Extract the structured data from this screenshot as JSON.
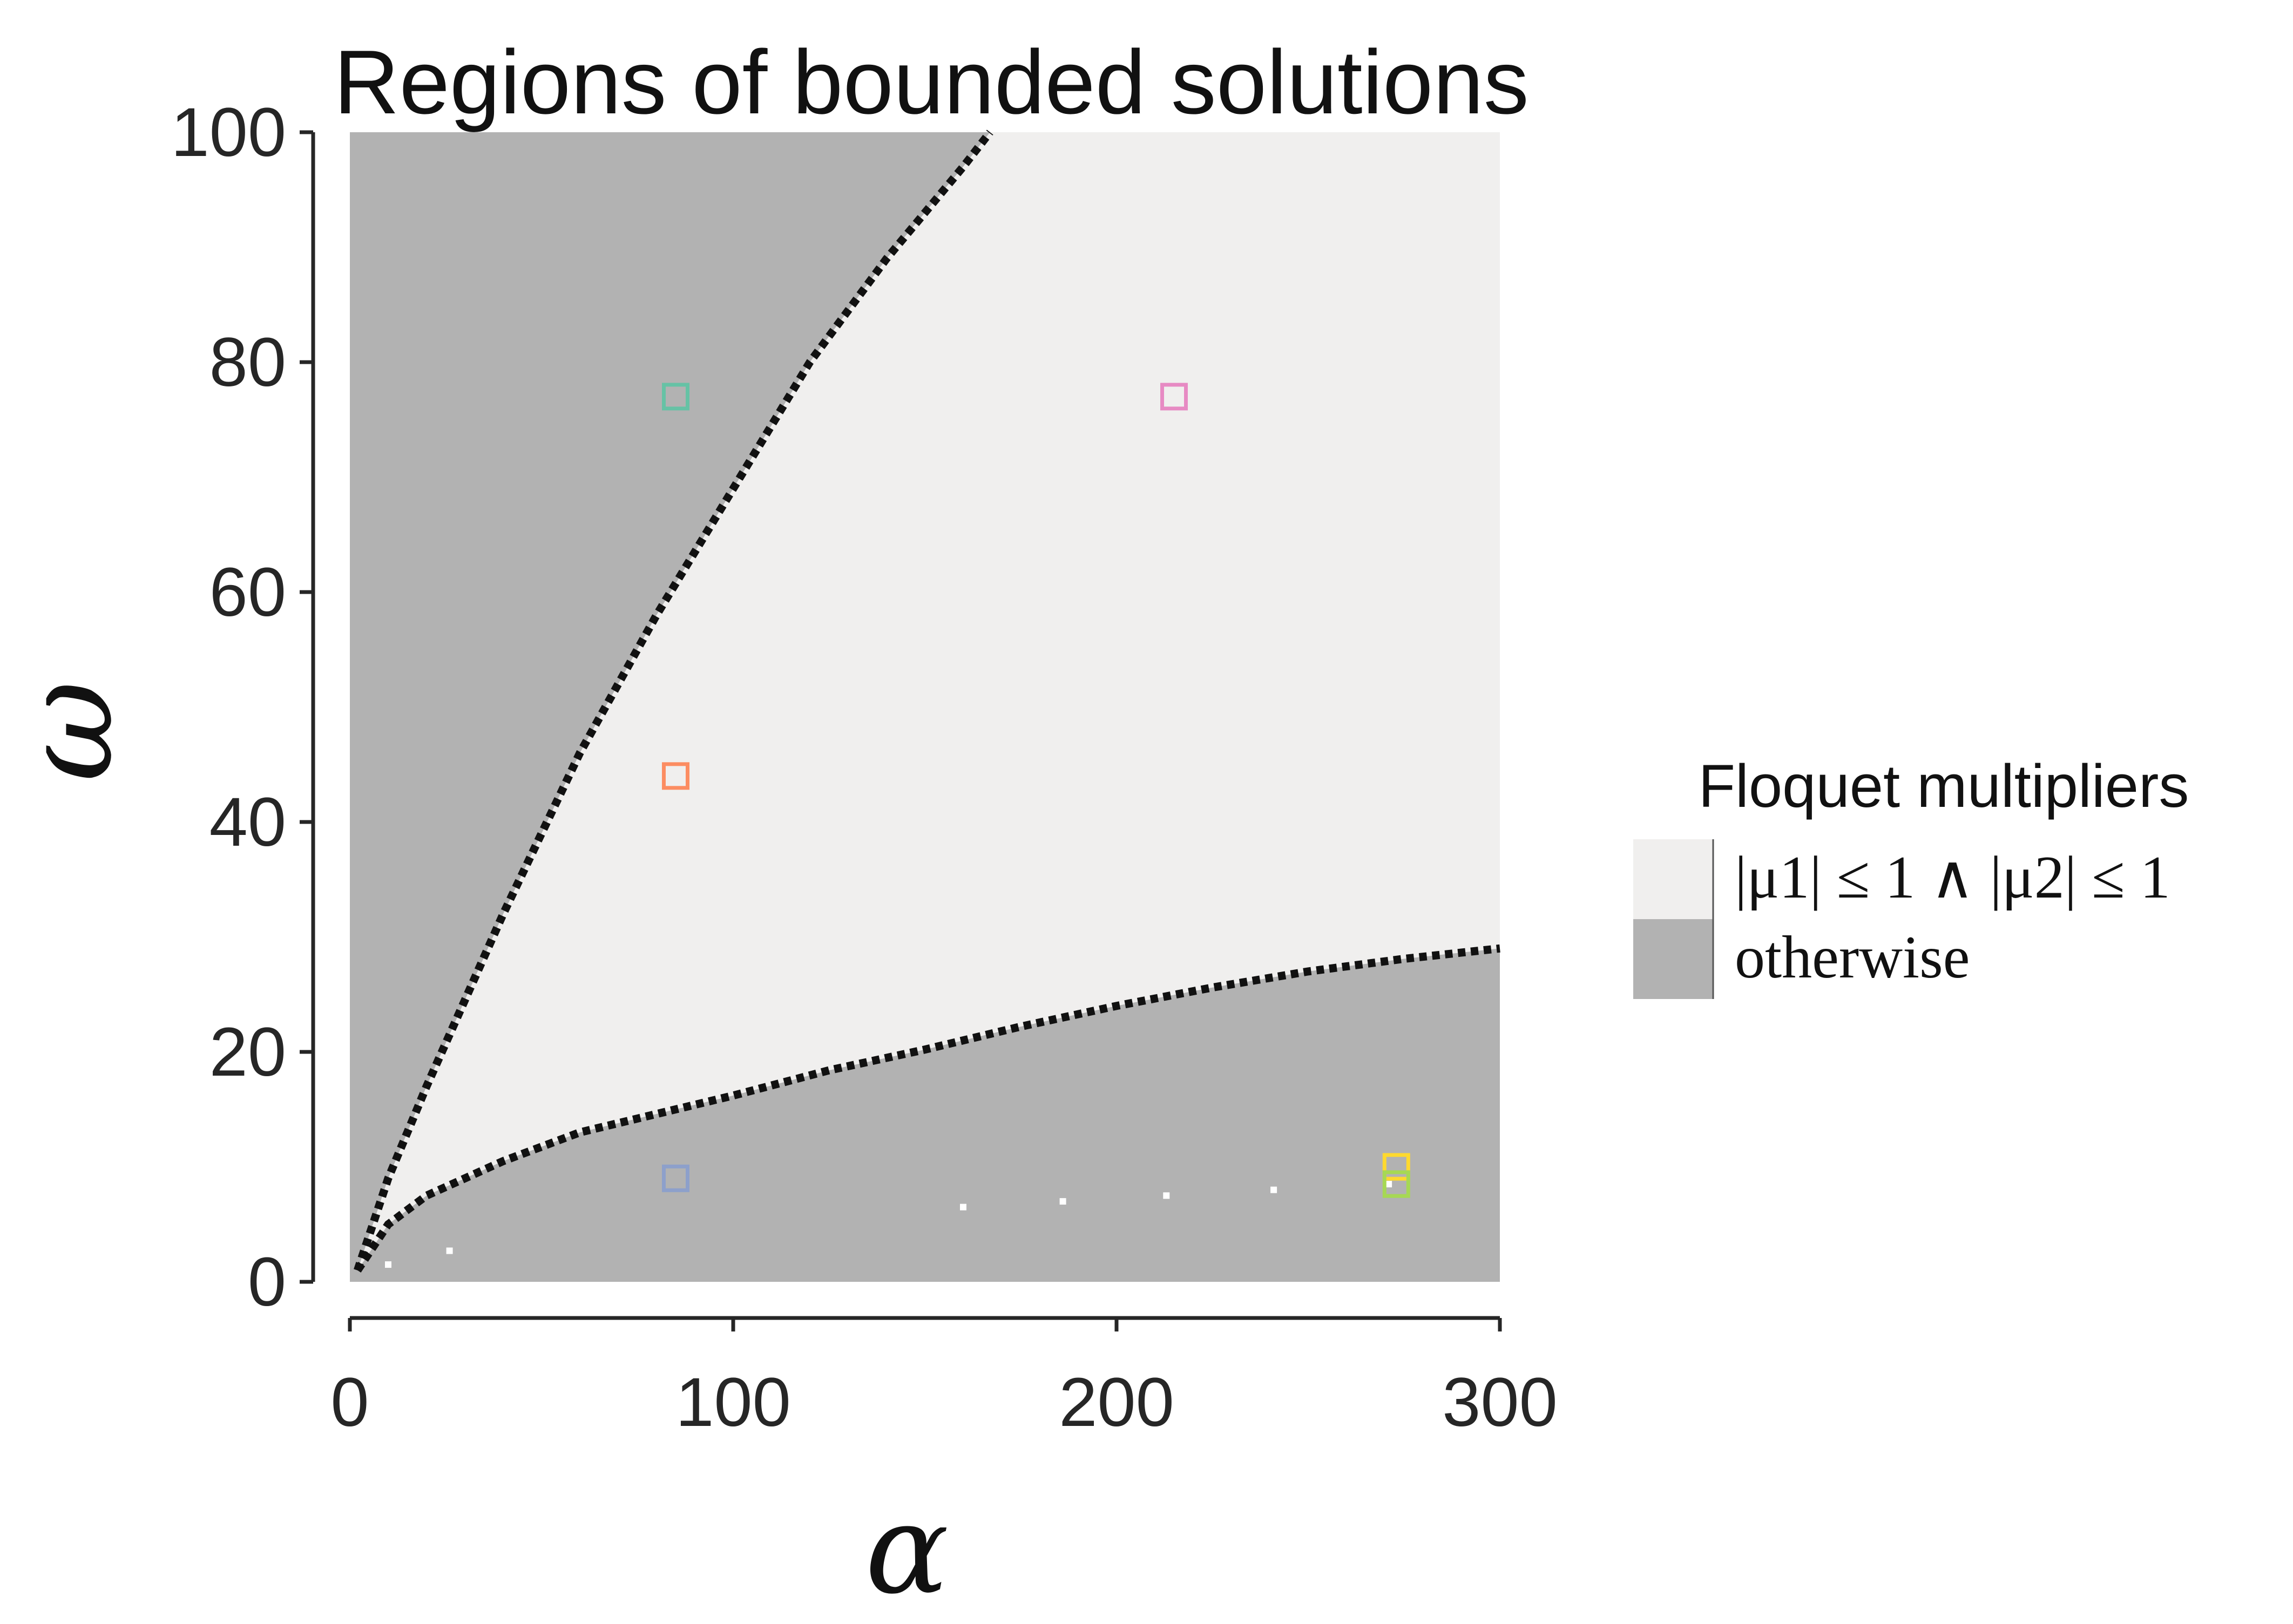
{
  "chart_data": {
    "type": "heatmap",
    "title": "Regions of bounded solutions",
    "xlabel": "α",
    "ylabel": "ω",
    "xlim": [
      0,
      300
    ],
    "ylim": [
      0,
      100
    ],
    "xticks": [
      0,
      100,
      200,
      300
    ],
    "yticks": [
      0,
      20,
      40,
      60,
      80,
      100
    ],
    "grid": false,
    "colors": {
      "bounded": "#f0efee",
      "otherwise": "#b2b2b2",
      "boundary": "#111111"
    },
    "legend": {
      "title": "Floquet multipliers",
      "placement": "right",
      "entries": [
        {
          "name": "bounded",
          "label": "|μ1| ≤ 1 ∧ |μ2| ≤ 1",
          "color": "#f0efee"
        },
        {
          "name": "otherwise",
          "label": "otherwise",
          "color": "#b2b2b2"
        }
      ]
    },
    "boundaries": [
      {
        "name": "upper-boundary",
        "x": [
          2,
          10,
          20,
          40,
          60,
          80,
          100,
          120,
          140,
          160,
          167
        ],
        "y": [
          1,
          9,
          17,
          32,
          46,
          58,
          69,
          80,
          89,
          97,
          100
        ]
      },
      {
        "name": "lower-boundary",
        "x": [
          2,
          10,
          20,
          40,
          60,
          80,
          100,
          125,
          150,
          175,
          200,
          225,
          250,
          275,
          300
        ],
        "y": [
          1,
          5,
          7.5,
          10.5,
          13,
          14.6,
          16.2,
          18.4,
          20.2,
          22.2,
          24,
          25.6,
          27,
          28.1,
          29
        ]
      }
    ],
    "markers": [
      {
        "name": "marker-green",
        "x": 85,
        "y": 77,
        "color": "#66c2a5"
      },
      {
        "name": "marker-pink",
        "x": 215,
        "y": 77,
        "color": "#e78ac3"
      },
      {
        "name": "marker-orange",
        "x": 85,
        "y": 44,
        "color": "#fc8d62"
      },
      {
        "name": "marker-blue",
        "x": 85,
        "y": 9,
        "color": "#8da0cb"
      },
      {
        "name": "marker-yellow",
        "x": 273,
        "y": 10,
        "color": "#ffd92f"
      },
      {
        "name": "marker-lime",
        "x": 273,
        "y": 8.5,
        "color": "#a6d854"
      }
    ],
    "residual_dots": [
      {
        "x": 10,
        "y": 1.5
      },
      {
        "x": 26,
        "y": 2.7
      },
      {
        "x": 160,
        "y": 6.5
      },
      {
        "x": 186,
        "y": 7
      },
      {
        "x": 213,
        "y": 7.5
      },
      {
        "x": 241,
        "y": 8
      },
      {
        "x": 271,
        "y": 8.5
      }
    ]
  }
}
